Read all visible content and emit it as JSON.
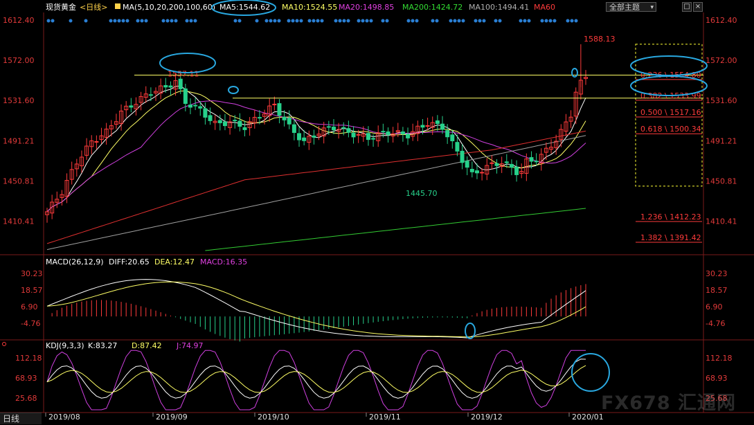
{
  "header": {
    "symbol": "现货黄金",
    "period": "<日线>",
    "ma_params": "MA(5,10,20,200,100,60)",
    "ma5": "MA5:1544.62",
    "ma10": "MA10:1524.55",
    "ma20": "MA20:1498.85",
    "ma200": "MA200:1424.72",
    "ma100": "MA100:1494.41",
    "ma60": "MA60"
  },
  "toolbar": {
    "theme_label": "全部主题",
    "btn_restore": "□",
    "btn_close": "×"
  },
  "macd_header": {
    "params": "MACD(26,12,9)",
    "diff": "DIFF:20.65",
    "dea": "DEA:12.47",
    "macd": "MACD:16.35"
  },
  "kdj_header": {
    "params": "KDJ(9,3,3)",
    "k": "K:83.27",
    "d": "D:87.42",
    "j": "J:74.97"
  },
  "period_tab": "日线",
  "watermark": "FX678 汇通网",
  "colors": {
    "up": "#ff3b3b",
    "down": "#27d18b",
    "ma5": "#ffffff",
    "ma10": "#ffff66",
    "ma20": "#d040e0",
    "ma200": "#33cc33",
    "ma100": "#a0a0a0",
    "ma60": "#e03030",
    "fib": "#ff3b3b",
    "hline": "#ffff66",
    "circle": "#29a8e0",
    "axis": "#e23a3a"
  },
  "chart_data": [
    {
      "type": "candlestick",
      "title": "现货黄金 <日线>",
      "yticks": [
        "1612.40",
        "1572.00",
        "1531.60",
        "1491.21",
        "1450.81",
        "1410.41"
      ],
      "ylim": [
        1381,
        1620
      ],
      "xticks": [
        "2019/08",
        "2019/09",
        "2019/10",
        "2019/11",
        "2019/12",
        "2020/01"
      ],
      "annotations": [
        {
          "label": "1557.11",
          "value": 1557.11,
          "color": "#ff3b3b"
        },
        {
          "label": "1588.13",
          "value": 1588.13,
          "color": "#ff3b3b"
        },
        {
          "label": "1445.70",
          "value": 1445.7,
          "color": "#27d18b"
        }
      ],
      "fibonacci": [
        {
          "label": "0.236 \\ 1554.80",
          "value": 1554.8
        },
        {
          "label": "0.382 \\ 1533.99",
          "value": 1533.99
        },
        {
          "label": "0.500 \\ 1517.16",
          "value": 1517.16
        },
        {
          "label": "0.618 \\ 1500.34",
          "value": 1500.34
        },
        {
          "label": "1.236 \\ 1412.23",
          "value": 1412.23
        },
        {
          "label": "1.382 \\ 1391.42",
          "value": 1391.42
        }
      ],
      "horizontal_lines": [
        1557.11,
        1533.99
      ]
    },
    {
      "type": "line",
      "title": "MACD(26,12,9)",
      "yticks": [
        "30.23",
        "18.57",
        "6.90",
        "-4.76"
      ],
      "ylim": [
        -14,
        35
      ]
    },
    {
      "type": "line",
      "title": "KDJ(9,3,3)",
      "yticks": [
        "112.18",
        "68.93",
        "25.68"
      ],
      "ylim": [
        0,
        130
      ]
    }
  ]
}
